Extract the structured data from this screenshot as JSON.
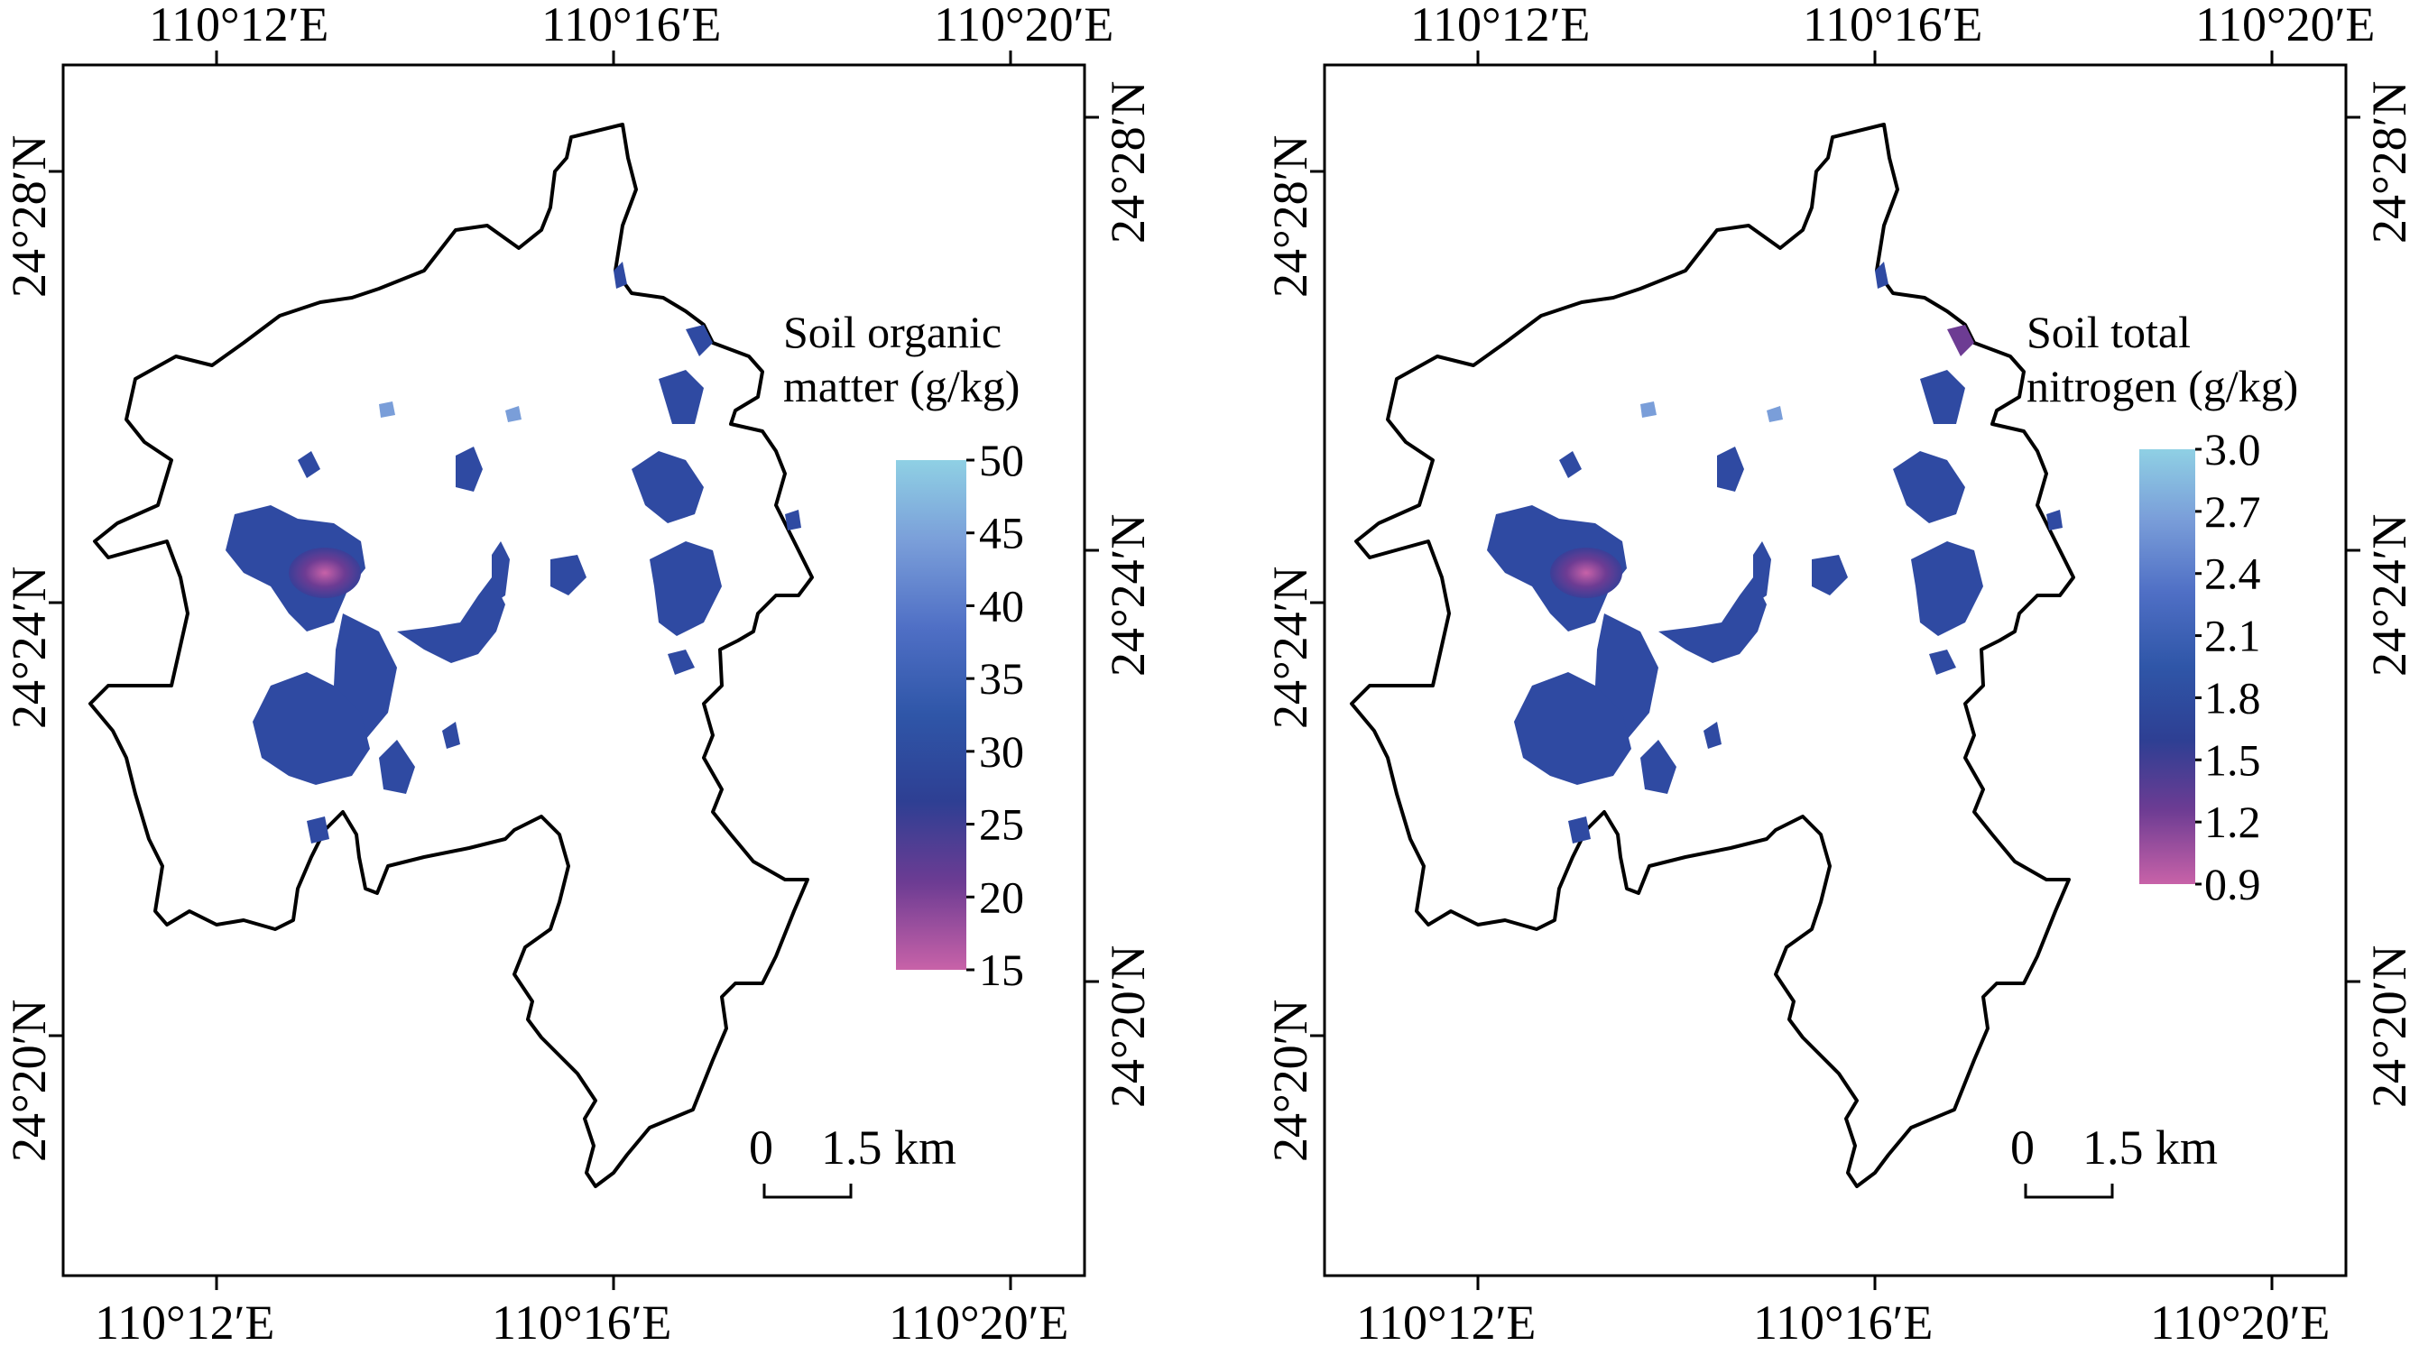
{
  "colors": {
    "ramp": [
      "#c862a8",
      "#6d3c93",
      "#2e3f93",
      "#2f56a8",
      "#4f6fc5",
      "#7a9ed9",
      "#8fd0e4"
    ],
    "boundary": "#000000",
    "frame": "#000000"
  },
  "map_data": {
    "longitude_ticks": [
      "110°12′E",
      "110°16′E",
      "110°20′E"
    ],
    "latitude_ticks": [
      "24°28′N",
      "24°24′N",
      "24°20′N"
    ],
    "panels": [
      {
        "id": "soc",
        "legend_title_line1": "Soil organic",
        "legend_title_line2": "matter (g/kg)",
        "legend_values": [
          50,
          45,
          40,
          35,
          30,
          25,
          20,
          15
        ],
        "legend_labels": [
          "50",
          "45",
          "40",
          "35",
          "30",
          "25",
          "20",
          "15"
        ],
        "legend_range": [
          15,
          50
        ],
        "scale_zero": "0",
        "scale_length": "1.5 km"
      },
      {
        "id": "tn",
        "legend_title_line1": "Soil total",
        "legend_title_line2": "nitrogen (g/kg)",
        "legend_values": [
          3.0,
          2.7,
          2.4,
          2.1,
          1.8,
          1.5,
          1.2,
          0.9
        ],
        "legend_labels": [
          "3.0",
          "2.7",
          "2.4",
          "2.1",
          "1.8",
          "1.5",
          "1.2",
          "0.9"
        ],
        "legend_range": [
          0.9,
          3.0
        ],
        "scale_zero": "0",
        "scale_length": "1.5 km"
      }
    ]
  }
}
